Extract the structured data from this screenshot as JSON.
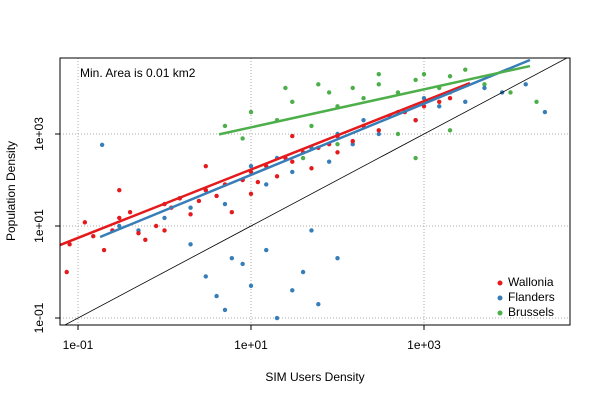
{
  "chart_data": {
    "type": "scatter",
    "xlabel": "SIM Users Density",
    "ylabel": "Population Density",
    "annotation": "Min. Area is 0.01 km2",
    "log_x": true,
    "log_y": true,
    "grid": true,
    "legend_position": "bottom-right",
    "xlim": [
      0.0619,
      48750
    ],
    "ylim": [
      0.0705,
      44870
    ],
    "xticks": [
      {
        "value": 0.1,
        "label": "1e-01"
      },
      {
        "value": 10,
        "label": "1e+01"
      },
      {
        "value": 1000,
        "label": "1e+03"
      }
    ],
    "yticks": [
      {
        "value": 0.1,
        "label": "1e-01"
      },
      {
        "value": 10,
        "label": "1e+01"
      },
      {
        "value": 1000,
        "label": "1e+03"
      }
    ],
    "reference_line": {
      "color": "#000000",
      "x": [
        0.0619,
        48750
      ],
      "y": [
        0.0619,
        48750
      ]
    },
    "series": [
      {
        "name": "Wallonia",
        "color": "#e41a1c",
        "x": [
          0.074,
          0.08,
          0.12,
          0.15,
          0.2,
          0.25,
          0.3,
          0.4,
          0.5,
          0.6,
          0.8,
          1,
          1.2,
          1.5,
          2,
          2.5,
          3,
          4,
          5,
          6,
          8,
          10,
          12,
          15,
          20,
          25,
          30,
          40,
          50,
          60,
          80,
          100,
          150,
          200,
          300,
          400,
          600,
          800,
          1000,
          1500,
          2000,
          0.3,
          1,
          3,
          10,
          30,
          100
        ],
        "y": [
          1,
          4,
          12,
          6,
          3,
          8,
          15,
          20,
          7,
          5,
          10,
          30,
          25,
          40,
          18,
          35,
          60,
          45,
          80,
          20,
          100,
          150,
          90,
          200,
          120,
          300,
          250,
          400,
          180,
          500,
          600,
          900,
          700,
          1500,
          1200,
          2500,
          3000,
          2000,
          4000,
          5000,
          6000,
          60,
          8,
          200,
          50,
          900,
          400
        ],
        "fit": {
          "x": [
            0.0619,
            3400
          ],
          "y": [
            3.86,
            12850
          ]
        }
      },
      {
        "name": "Flanders",
        "color": "#377eb8",
        "x": [
          0.19,
          0.3,
          0.5,
          1,
          1.5,
          2,
          3,
          5,
          8,
          10,
          15,
          20,
          30,
          50,
          80,
          100,
          150,
          200,
          300,
          500,
          800,
          1000,
          1500,
          2000,
          3000,
          5000,
          8000,
          15000,
          25000,
          3,
          4,
          5,
          8,
          10,
          15,
          20,
          30,
          40,
          60,
          100,
          6,
          2,
          50
        ],
        "y": [
          580,
          10,
          8,
          15,
          40,
          25,
          60,
          30,
          100,
          200,
          80,
          300,
          150,
          500,
          250,
          1000,
          600,
          2000,
          1000,
          3000,
          2000,
          6000,
          4000,
          8000,
          5000,
          10000,
          8000,
          12000,
          3000,
          0.8,
          0.3,
          0.15,
          1.5,
          0.5,
          3,
          0.1,
          0.4,
          1,
          0.2,
          2,
          2,
          4,
          8
        ],
        "fit": {
          "x": [
            0.18,
            16800
          ],
          "y": [
            5.77,
            40600
          ]
        }
      },
      {
        "name": "Brussels",
        "color": "#4daf4a",
        "x": [
          5,
          8,
          10,
          20,
          30,
          50,
          80,
          100,
          150,
          200,
          300,
          500,
          800,
          1000,
          1500,
          2000,
          3000,
          5000,
          10000,
          20000,
          40,
          100,
          500,
          800,
          2000,
          300,
          60,
          25
        ],
        "y": [
          1500,
          800,
          3000,
          2000,
          5000,
          1500,
          8000,
          4000,
          10000,
          6000,
          12000,
          8000,
          15000,
          20000,
          10000,
          18000,
          25000,
          12000,
          8000,
          5000,
          300,
          600,
          1000,
          300,
          1200,
          20000,
          12000,
          10000
        ],
        "fit": {
          "x": [
            4.27,
            16800
          ],
          "y": [
            980,
            30000
          ]
        }
      }
    ]
  }
}
